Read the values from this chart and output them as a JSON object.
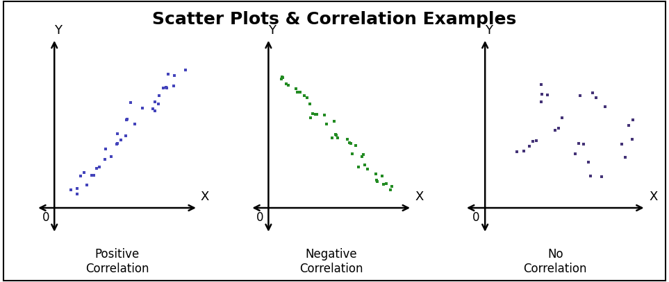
{
  "title": "Scatter Plots & Correlation Examples",
  "title_fontsize": 18,
  "title_fontweight": "bold",
  "background_color": "#ffffff",
  "border_color": "#000000",
  "subplots": [
    {
      "label": "Positive\nCorrelation",
      "color": "#4444bb",
      "type": "positive"
    },
    {
      "label": "Negative\nCorrelation",
      "color": "#228B22",
      "type": "negative"
    },
    {
      "label": "No\nCorrelation",
      "color": "#443377",
      "type": "none"
    }
  ],
  "marker": "s",
  "marker_size": 12,
  "axis_label_fontsize": 13,
  "sublabel_fontsize": 12,
  "zero_fontsize": 12,
  "seed": 42,
  "axes_lw": 1.8,
  "arrow_hw": 8,
  "arrow_hl": 10
}
